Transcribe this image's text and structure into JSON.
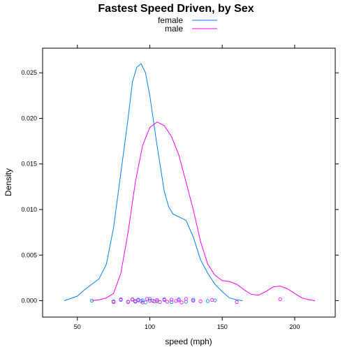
{
  "chart_data": {
    "type": "line",
    "title": "Fastest Speed Driven, by Sex",
    "xlabel": "speed (mph)",
    "ylabel": "Density",
    "xlim": [
      26,
      228
    ],
    "ylim": [
      -0.0018,
      0.0277
    ],
    "x_ticks": [
      50,
      100,
      150,
      200
    ],
    "y_ticks": [
      0.0,
      0.005,
      0.01,
      0.015,
      0.02,
      0.025
    ],
    "y_tick_labels": [
      "0.000",
      "0.005",
      "0.010",
      "0.015",
      "0.020",
      "0.025"
    ],
    "legend_position": "top",
    "series": [
      {
        "name": "female",
        "color": "#0080ff",
        "x": [
          41,
          50,
          55,
          60,
          65,
          70,
          75,
          80,
          85,
          88,
          91,
          94,
          97,
          100,
          105,
          110,
          113,
          116,
          120,
          125,
          130,
          135,
          140,
          145,
          150,
          155,
          160,
          164
        ],
        "y": [
          0.0,
          0.0005,
          0.0012,
          0.0018,
          0.0024,
          0.004,
          0.008,
          0.014,
          0.02,
          0.024,
          0.0256,
          0.026,
          0.025,
          0.0225,
          0.017,
          0.012,
          0.0103,
          0.0095,
          0.0092,
          0.0088,
          0.007,
          0.0045,
          0.003,
          0.0018,
          0.001,
          0.0003,
          0.0001,
          0.0
        ]
      },
      {
        "name": "male",
        "color": "#ff00ff",
        "x": [
          60,
          65,
          70,
          75,
          80,
          85,
          90,
          95,
          100,
          105,
          110,
          115,
          120,
          125,
          130,
          135,
          140,
          145,
          150,
          155,
          160,
          165,
          170,
          175,
          180,
          185,
          190,
          195,
          200,
          205,
          210,
          214
        ],
        "y": [
          0.0,
          0.0001,
          0.0003,
          0.0008,
          0.003,
          0.0075,
          0.013,
          0.017,
          0.019,
          0.0196,
          0.0192,
          0.018,
          0.016,
          0.013,
          0.01,
          0.0065,
          0.004,
          0.0028,
          0.0022,
          0.0021,
          0.0018,
          0.0012,
          0.0007,
          0.0006,
          0.001,
          0.0015,
          0.0016,
          0.0013,
          0.0008,
          0.0003,
          0.0001,
          0.0
        ]
      }
    ],
    "rug": {
      "female": [
        60,
        75,
        80,
        85,
        88,
        90,
        92,
        94,
        95,
        97,
        100,
        102,
        105,
        110,
        115,
        120,
        125,
        130,
        140,
        145
      ],
      "male": [
        75,
        80,
        85,
        88,
        90,
        92,
        95,
        98,
        100,
        103,
        105,
        107,
        110,
        112,
        115,
        118,
        120,
        122,
        125,
        130,
        135,
        143,
        160,
        190
      ]
    }
  }
}
